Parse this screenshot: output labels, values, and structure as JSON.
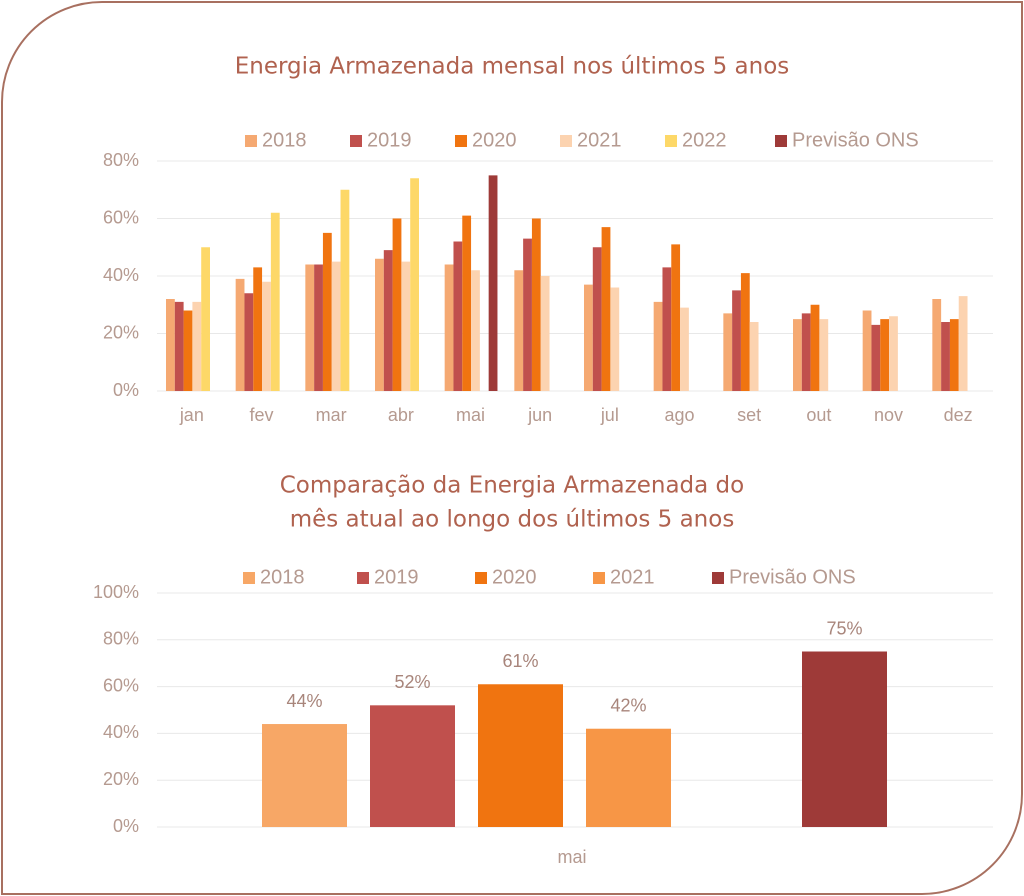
{
  "chart_data": [
    {
      "type": "bar",
      "title": "Energia Armazenada mensal nos últimos 5 anos",
      "categories": [
        "jan",
        "fev",
        "mar",
        "abr",
        "mai",
        "jun",
        "jul",
        "ago",
        "set",
        "out",
        "nov",
        "dez"
      ],
      "series": [
        {
          "name": "2018",
          "color": "#f5a972",
          "values": [
            32,
            39,
            44,
            46,
            44,
            42,
            37,
            31,
            27,
            25,
            28,
            32
          ]
        },
        {
          "name": "2019",
          "color": "#c0504d",
          "values": [
            31,
            34,
            44,
            49,
            52,
            53,
            50,
            43,
            35,
            27,
            23,
            24
          ]
        },
        {
          "name": "2020",
          "color": "#f07410",
          "values": [
            28,
            43,
            55,
            60,
            61,
            60,
            57,
            51,
            41,
            30,
            25,
            25
          ]
        },
        {
          "name": "2021",
          "color": "#fcd3b0",
          "values": [
            31,
            38,
            45,
            45,
            42,
            40,
            36,
            29,
            24,
            25,
            26,
            33
          ]
        },
        {
          "name": "2022",
          "color": "#fdd868",
          "values": [
            50,
            62,
            70,
            74,
            null,
            null,
            null,
            null,
            null,
            null,
            null,
            null
          ]
        },
        {
          "name": "Previsão ONS",
          "color": "#9e3a38",
          "values": [
            null,
            null,
            null,
            null,
            75,
            null,
            null,
            null,
            null,
            null,
            null,
            null
          ]
        }
      ],
      "ylim": [
        0,
        80
      ],
      "yticks": [
        {
          "value": 0,
          "label": "0%"
        },
        {
          "value": 20,
          "label": "20%"
        },
        {
          "value": 40,
          "label": "40%"
        },
        {
          "value": 60,
          "label": "60%"
        },
        {
          "value": 80,
          "label": "80%"
        }
      ],
      "grid": true,
      "legend": "top"
    },
    {
      "type": "bar",
      "title": [
        "Comparação da Energia Armazenada do",
        "mês atual ao longo dos últimos 5 anos"
      ],
      "categories": [
        "mai"
      ],
      "series": [
        {
          "name": "2018",
          "color": "#f7a766",
          "values": [
            44
          ],
          "value_labels": [
            "44%"
          ]
        },
        {
          "name": "2019",
          "color": "#c0504d",
          "values": [
            52
          ],
          "value_labels": [
            "52%"
          ]
        },
        {
          "name": "2020",
          "color": "#f07410",
          "values": [
            61
          ],
          "value_labels": [
            "61%"
          ]
        },
        {
          "name": "2021",
          "color": "#f79646",
          "values": [
            42
          ],
          "value_labels": [
            "42%"
          ]
        },
        {
          "name": "Previsão ONS",
          "color": "#9e3a38",
          "values": [
            75
          ],
          "value_labels": [
            "75%"
          ]
        }
      ],
      "ylim": [
        0,
        100
      ],
      "yticks": [
        {
          "value": 0,
          "label": "0%"
        },
        {
          "value": 20,
          "label": "20%"
        },
        {
          "value": 40,
          "label": "40%"
        },
        {
          "value": 60,
          "label": "60%"
        },
        {
          "value": 80,
          "label": "80%"
        },
        {
          "value": 100,
          "label": "100%"
        }
      ],
      "grid": true,
      "legend": "top"
    }
  ]
}
